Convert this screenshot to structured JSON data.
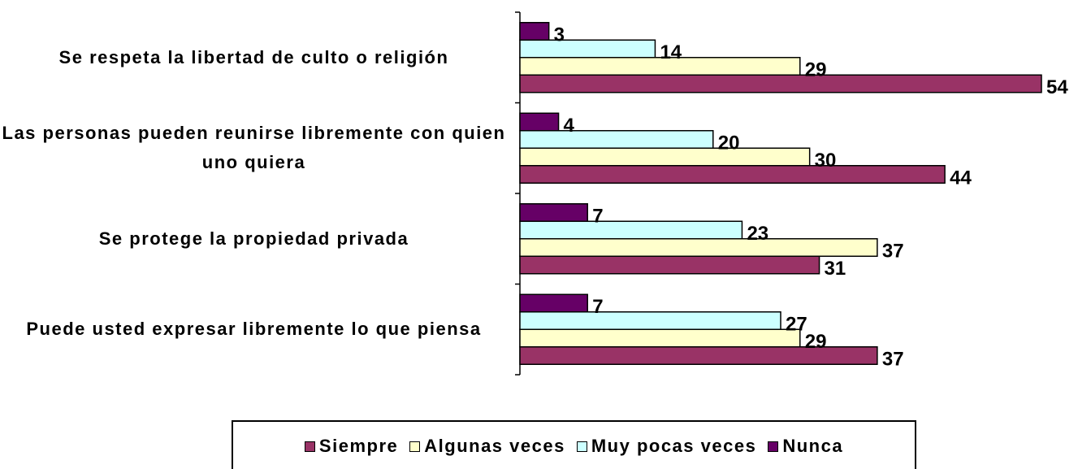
{
  "chart_data": {
    "type": "bar",
    "orientation": "horizontal",
    "categories": [
      "Se respeta la libertad de culto o religión",
      "Las personas pueden reunirse libremente con quien uno quiera",
      "Se protege la propiedad privada",
      "Puede usted expresar libremente lo que piensa"
    ],
    "series": [
      {
        "name": "Siempre",
        "color": "#993366",
        "values": [
          54,
          44,
          31,
          37
        ]
      },
      {
        "name": "Algunas veces",
        "color": "#ffffcc",
        "values": [
          29,
          30,
          37,
          29
        ]
      },
      {
        "name": "Muy pocas veces",
        "color": "#ccffff",
        "values": [
          14,
          20,
          23,
          27
        ]
      },
      {
        "name": "Nunca",
        "color": "#660066",
        "values": [
          3,
          4,
          7,
          7
        ]
      }
    ],
    "legend": "bottom"
  }
}
